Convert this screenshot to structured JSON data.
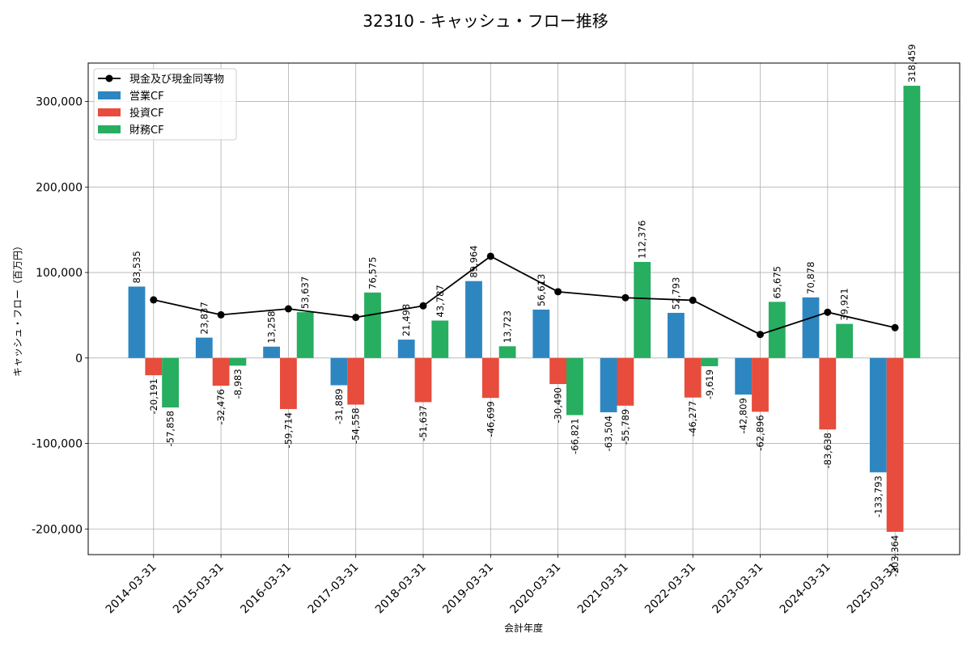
{
  "chart_data": {
    "type": "bar",
    "title": "32310 - キャッシュ・フロー推移",
    "xlabel": "会計年度",
    "ylabel": "キャッシュ・フロー（百万円）",
    "categories": [
      "2014-03-31",
      "2015-03-31",
      "2016-03-31",
      "2017-03-31",
      "2018-03-31",
      "2019-03-31",
      "2020-03-31",
      "2021-03-31",
      "2022-03-31",
      "2023-03-31",
      "2024-03-31",
      "2025-03-31"
    ],
    "series": [
      {
        "name": "営業CF",
        "kind": "bar",
        "color": "#2e86c1",
        "values": [
          83535,
          23837,
          13258,
          -31889,
          21498,
          89964,
          56613,
          -63504,
          52793,
          -42809,
          70878,
          -133793
        ],
        "labels": [
          "83,535",
          "23,837",
          "13,258",
          "-31,889",
          "21,498",
          "89,964",
          "56,613",
          "-63,504",
          "52,793",
          "-42,809",
          "70,878",
          "-133,793"
        ]
      },
      {
        "name": "投資CF",
        "kind": "bar",
        "color": "#e74c3c",
        "values": [
          -20191,
          -32476,
          -59714,
          -54558,
          -51637,
          -46699,
          -30490,
          -55789,
          -46277,
          -62896,
          -83638,
          -203364
        ],
        "labels": [
          "-20,191",
          "-32,476",
          "-59,714",
          "-54,558",
          "-51,637",
          "-46,699",
          "-30,490",
          "-55,789",
          "-46,277",
          "-62,896",
          "-83,638",
          "-203,364"
        ]
      },
      {
        "name": "財務CF",
        "kind": "bar",
        "color": "#27ae60",
        "values": [
          -57858,
          -8983,
          53637,
          76575,
          43787,
          13723,
          -66821,
          112376,
          -9619,
          65675,
          39921,
          318459
        ],
        "labels": [
          "-57,858",
          "-8,983",
          "53,637",
          "76,575",
          "43,787",
          "13,723",
          "-66,821",
          "112,376",
          "-9,619",
          "65,675",
          "39,921",
          "318,459"
        ]
      },
      {
        "name": "現金及び現金同等物",
        "kind": "line",
        "color": "#000000",
        "values": [
          68000,
          50500,
          57500,
          47500,
          61000,
          119000,
          77500,
          70500,
          67500,
          27500,
          53500,
          35500
        ]
      }
    ],
    "ylim": [
      -230000,
      345000
    ],
    "yticks": [
      -200000,
      -100000,
      0,
      100000,
      200000,
      300000
    ],
    "ytick_labels": [
      "-200,000",
      "-100,000",
      "0",
      "100,000",
      "200,000",
      "300,000"
    ],
    "grid": true,
    "legend_position": "top-left"
  }
}
